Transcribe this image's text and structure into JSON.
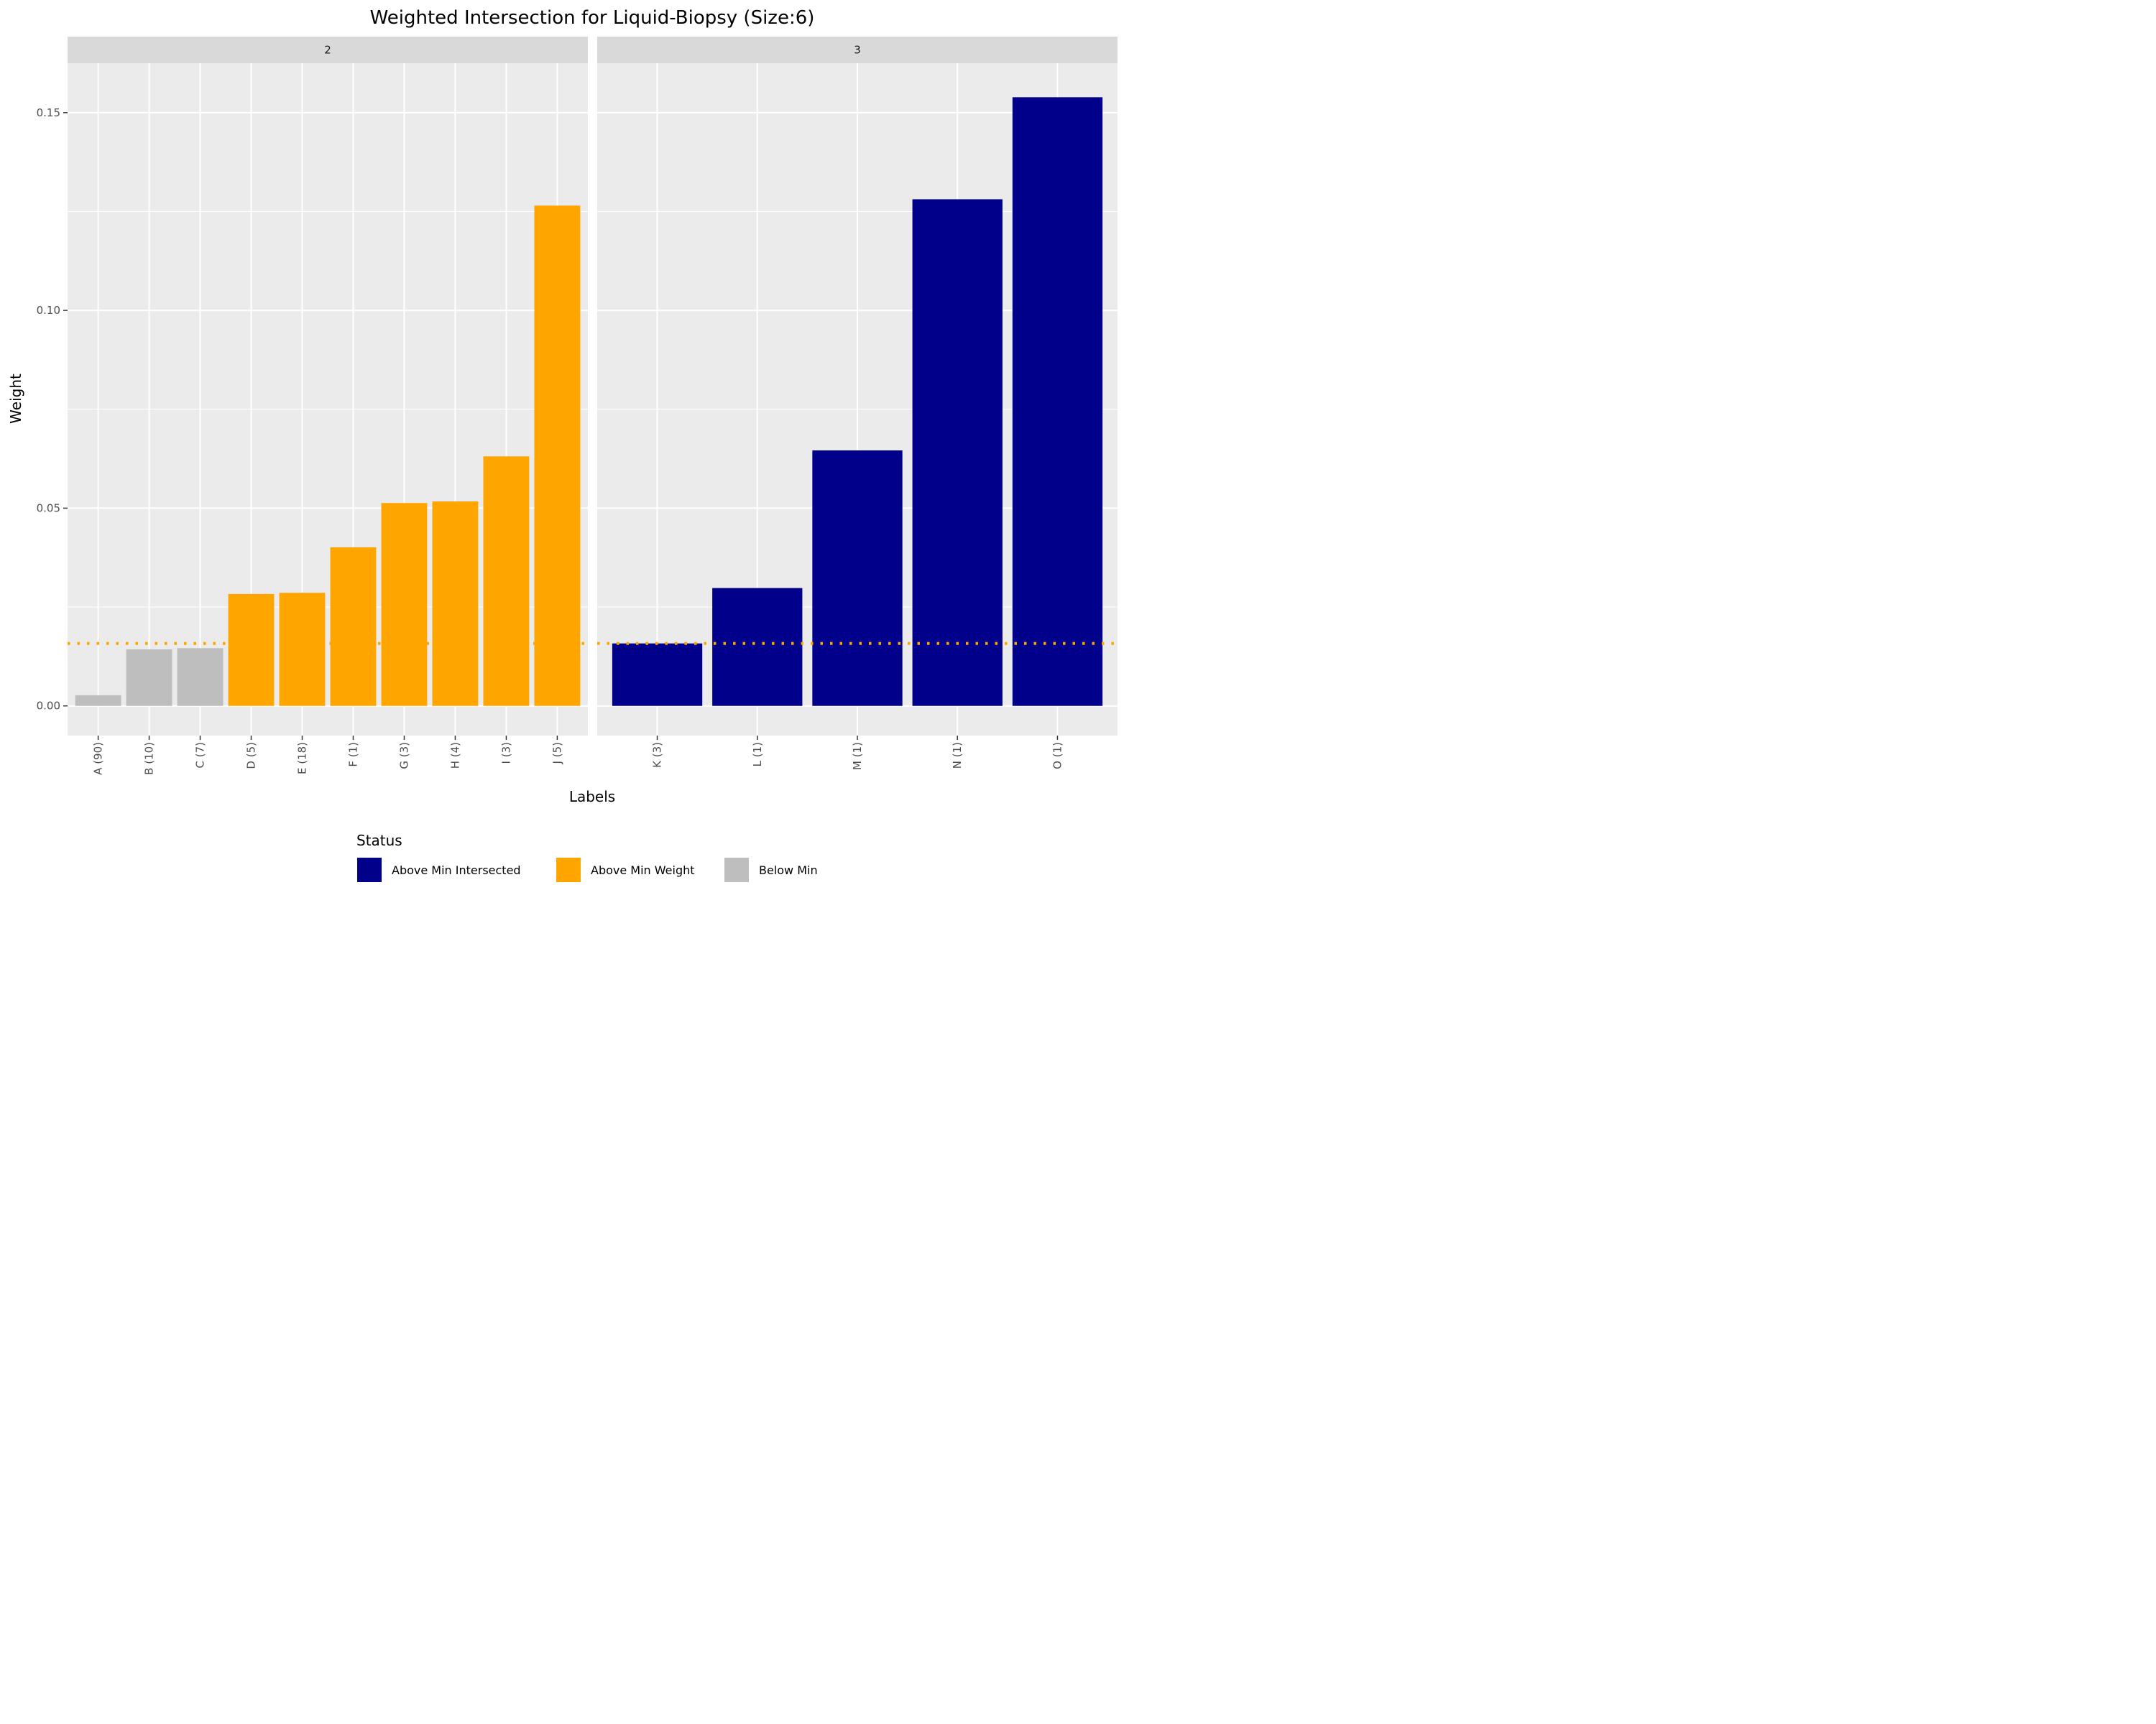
{
  "chart_data": {
    "type": "bar",
    "title": "Weighted Intersection for Liquid-Biopsy (Size:6)",
    "xlabel": "Labels",
    "ylabel": "Weight",
    "ylim": [
      -0.0075,
      0.1625
    ],
    "yticks": [
      "0.00",
      "0.05",
      "0.10",
      "0.15"
    ],
    "ytick_values": [
      0.0,
      0.05,
      0.1,
      0.15
    ],
    "threshold": 0.0158,
    "threshold_color": "#FFA500",
    "grid": true,
    "facets": [
      {
        "strip_label": "2",
        "categories": [
          "A (90)",
          "B (10)",
          "C (7)",
          "D (5)",
          "E (18)",
          "F (1)",
          "G (3)",
          "H (4)",
          "I (3)",
          "J (5)"
        ],
        "values": [
          0.0027,
          0.0143,
          0.0146,
          0.0283,
          0.0286,
          0.0401,
          0.0513,
          0.0517,
          0.0631,
          0.1265
        ],
        "status": [
          "Below Min",
          "Below Min",
          "Below Min",
          "Above Min Weight",
          "Above Min Weight",
          "Above Min Weight",
          "Above Min Weight",
          "Above Min Weight",
          "Above Min Weight",
          "Above Min Weight"
        ]
      },
      {
        "strip_label": "3",
        "categories": [
          "K (3)",
          "L (1)",
          "M (1)",
          "N (1)",
          "O (1)"
        ],
        "values": [
          0.0158,
          0.0298,
          0.0646,
          0.1281,
          0.1539
        ],
        "status": [
          "Above Min Intersected",
          "Above Min Intersected",
          "Above Min Intersected",
          "Above Min Intersected",
          "Above Min Intersected"
        ]
      }
    ],
    "legend": {
      "title": "Status",
      "placement": "bottom",
      "entries": [
        {
          "label": "Above Min Intersected",
          "color": "#00008B"
        },
        {
          "label": "Above Min Weight",
          "color": "#FFA500"
        },
        {
          "label": "Below Min",
          "color": "#BEBEBE"
        }
      ]
    }
  }
}
